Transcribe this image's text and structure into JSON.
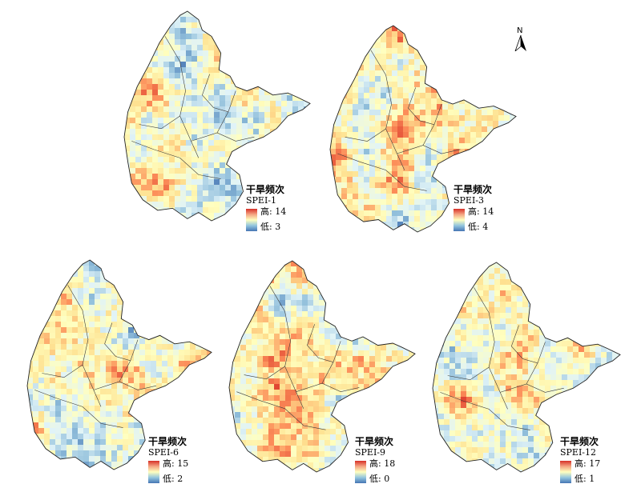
{
  "legend_title": "干旱频次",
  "high_label": "高",
  "low_label": "低",
  "north_label": "N",
  "icons": {
    "north_arrow": "north-arrow-icon"
  },
  "colors": {
    "high": "#d73027",
    "mid": "#ffffbf",
    "low": "#4575b4",
    "boundary": "#333333"
  },
  "panels": [
    {
      "index": "SPEI-1",
      "high": "14",
      "low": "3"
    },
    {
      "index": "SPEI-3",
      "high": "14",
      "low": "4"
    },
    {
      "index": "SPEI-6",
      "high": "15",
      "low": "2"
    },
    {
      "index": "SPEI-9",
      "high": "18",
      "low": "0"
    },
    {
      "index": "SPEI-12",
      "high": "17",
      "low": "1"
    }
  ]
}
